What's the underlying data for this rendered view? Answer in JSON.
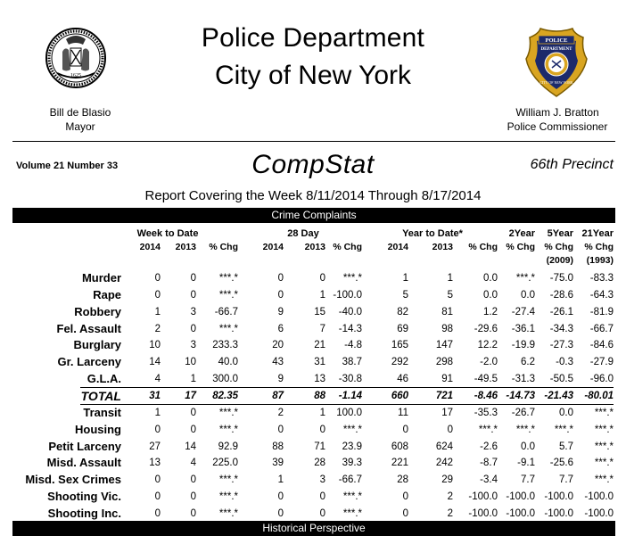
{
  "header": {
    "title_line1": "Police Department",
    "title_line2": "City of New York",
    "mayor_name": "Bill de Blasio",
    "mayor_title": "Mayor",
    "commissioner_name": "William J. Bratton",
    "commissioner_title": "Police Commissioner",
    "seal_year": "1625",
    "badge_top": "POLICE",
    "badge_mid": "DEPARTMENT",
    "badge_bottom": "CITY OF NEW YORK"
  },
  "report": {
    "volume": "Volume 21   Number  33",
    "name": "CompStat",
    "precinct": "66th Precinct",
    "period": "Report Covering the Week  8/11/2014  Through  8/17/2014",
    "section_title": "Crime Complaints",
    "next_section_title": "Historical Perspective"
  },
  "columns": {
    "group_week": "Week to Date",
    "group_28": "28 Day",
    "group_ytd": "Year to Date*",
    "two_year": "2Year",
    "five_year": "5Year",
    "twentyone_year": "21Year",
    "y2014": "2014",
    "y2013": "2013",
    "pct_chg": "% Chg",
    "base_2009": "(2009)",
    "base_1993": "(1993)"
  },
  "rows": [
    {
      "label": "Murder",
      "v": [
        "0",
        "0",
        "***.*",
        "0",
        "0",
        "***.*",
        "1",
        "1",
        "0.0",
        "***.*",
        "-75.0",
        "-83.3"
      ]
    },
    {
      "label": "Rape",
      "v": [
        "0",
        "0",
        "***.*",
        "0",
        "1",
        "-100.0",
        "5",
        "5",
        "0.0",
        "0.0",
        "-28.6",
        "-64.3"
      ]
    },
    {
      "label": "Robbery",
      "v": [
        "1",
        "3",
        "-66.7",
        "9",
        "15",
        "-40.0",
        "82",
        "81",
        "1.2",
        "-27.4",
        "-26.1",
        "-81.9"
      ]
    },
    {
      "label": "Fel. Assault",
      "v": [
        "2",
        "0",
        "***.*",
        "6",
        "7",
        "-14.3",
        "69",
        "98",
        "-29.6",
        "-36.1",
        "-34.3",
        "-66.7"
      ]
    },
    {
      "label": "Burglary",
      "v": [
        "10",
        "3",
        "233.3",
        "20",
        "21",
        "-4.8",
        "165",
        "147",
        "12.2",
        "-19.9",
        "-27.3",
        "-84.6"
      ]
    },
    {
      "label": "Gr. Larceny",
      "v": [
        "14",
        "10",
        "40.0",
        "43",
        "31",
        "38.7",
        "292",
        "298",
        "-2.0",
        "6.2",
        "-0.3",
        "-27.9"
      ]
    },
    {
      "label": "G.L.A.",
      "v": [
        "4",
        "1",
        "300.0",
        "9",
        "13",
        "-30.8",
        "46",
        "91",
        "-49.5",
        "-31.3",
        "-50.5",
        "-96.0"
      ]
    },
    {
      "label": "TOTAL",
      "total": true,
      "v": [
        "31",
        "17",
        "82.35",
        "87",
        "88",
        "-1.14",
        "660",
        "721",
        "-8.46",
        "-14.73",
        "-21.43",
        "-80.01"
      ]
    },
    {
      "label": "Transit",
      "v": [
        "1",
        "0",
        "***.*",
        "2",
        "1",
        "100.0",
        "11",
        "17",
        "-35.3",
        "-26.7",
        "0.0",
        "***.*"
      ]
    },
    {
      "label": "Housing",
      "v": [
        "0",
        "0",
        "***.*",
        "0",
        "0",
        "***.*",
        "0",
        "0",
        "***.*",
        "***.*",
        "***.*",
        "***.*"
      ]
    },
    {
      "label": "Petit Larceny",
      "v": [
        "27",
        "14",
        "92.9",
        "88",
        "71",
        "23.9",
        "608",
        "624",
        "-2.6",
        "0.0",
        "5.7",
        "***.*"
      ]
    },
    {
      "label": "Misd. Assault",
      "v": [
        "13",
        "4",
        "225.0",
        "39",
        "28",
        "39.3",
        "221",
        "242",
        "-8.7",
        "-9.1",
        "-25.6",
        "***.*"
      ]
    },
    {
      "label": "Misd. Sex Crimes",
      "v": [
        "0",
        "0",
        "***.*",
        "1",
        "3",
        "-66.7",
        "28",
        "29",
        "-3.4",
        "7.7",
        "7.7",
        "***.*"
      ]
    },
    {
      "label": "Shooting Vic.",
      "v": [
        "0",
        "0",
        "***.*",
        "0",
        "0",
        "***.*",
        "0",
        "2",
        "-100.0",
        "-100.0",
        "-100.0",
        "-100.0"
      ]
    },
    {
      "label": "Shooting Inc.",
      "v": [
        "0",
        "0",
        "***.*",
        "0",
        "0",
        "***.*",
        "0",
        "2",
        "-100.0",
        "-100.0",
        "-100.0",
        "-100.0"
      ]
    }
  ]
}
